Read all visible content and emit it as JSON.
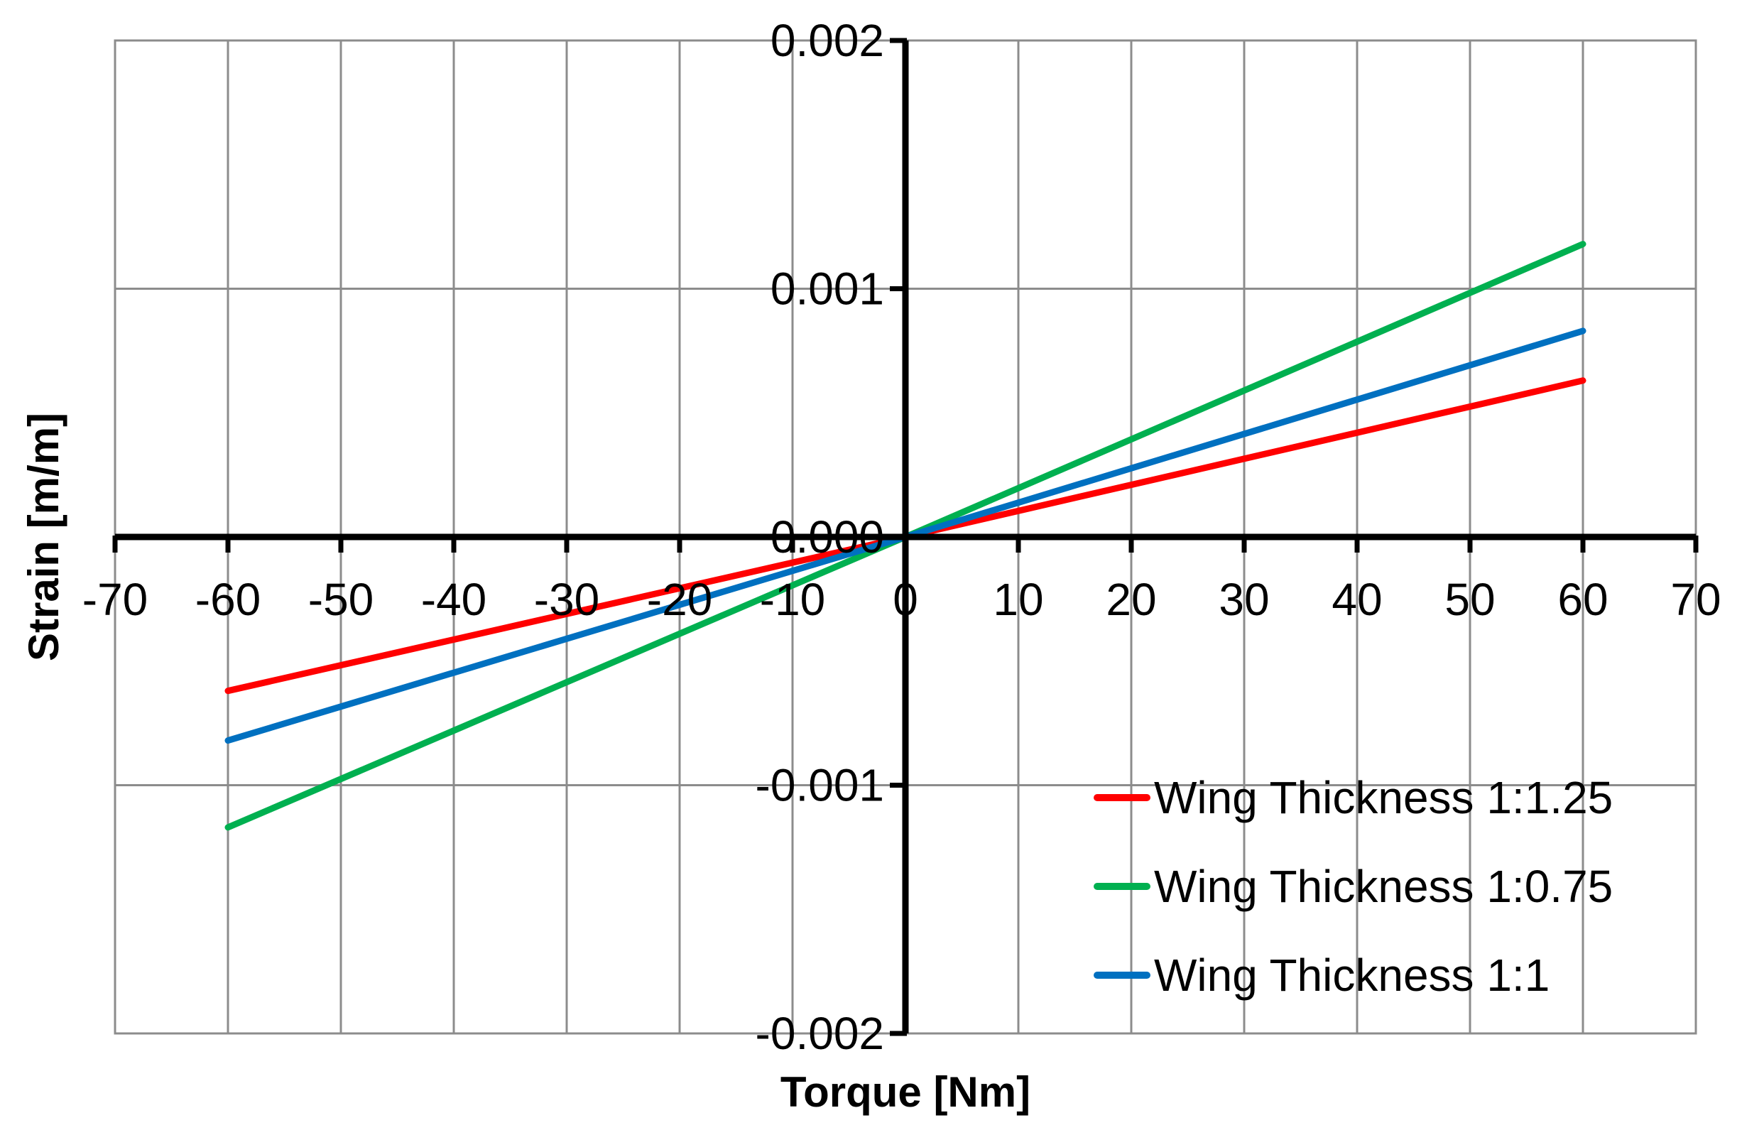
{
  "chart_data": {
    "type": "line",
    "xlabel": "Torque [Nm]",
    "ylabel": "Strain [m/m]",
    "xlim": [
      -70,
      70
    ],
    "ylim": [
      -0.002,
      0.002
    ],
    "x_ticks": [
      -70,
      -60,
      -50,
      -40,
      -30,
      -20,
      -10,
      0,
      10,
      20,
      30,
      40,
      50,
      60,
      70
    ],
    "x_tick_labels": [
      "-70",
      "-60",
      "-50",
      "-40",
      "-30",
      "-20",
      "-10",
      "0",
      "10",
      "20",
      "30",
      "40",
      "50",
      "60",
      "70"
    ],
    "y_ticks": [
      -0.002,
      -0.001,
      0,
      0.001,
      0.002
    ],
    "y_tick_labels": [
      "-0.002",
      "-0.001",
      "0.000",
      "0.001",
      "0.002"
    ],
    "grid": true,
    "legend_position": "bottom-right",
    "series": [
      {
        "name": "Wing Thickness 1:1.25",
        "color": "#ff0000",
        "x": [
          -60,
          0,
          60
        ],
        "y": [
          -0.00062,
          0,
          0.00063
        ]
      },
      {
        "name": "Wing Thickness 1:0.75",
        "color": "#00b050",
        "x": [
          -60,
          0,
          60
        ],
        "y": [
          -0.00117,
          0,
          0.00118
        ]
      },
      {
        "name": "Wing Thickness 1:1",
        "color": "#0070c0",
        "x": [
          -60,
          0,
          60
        ],
        "y": [
          -0.00082,
          0,
          0.00083
        ]
      }
    ]
  }
}
